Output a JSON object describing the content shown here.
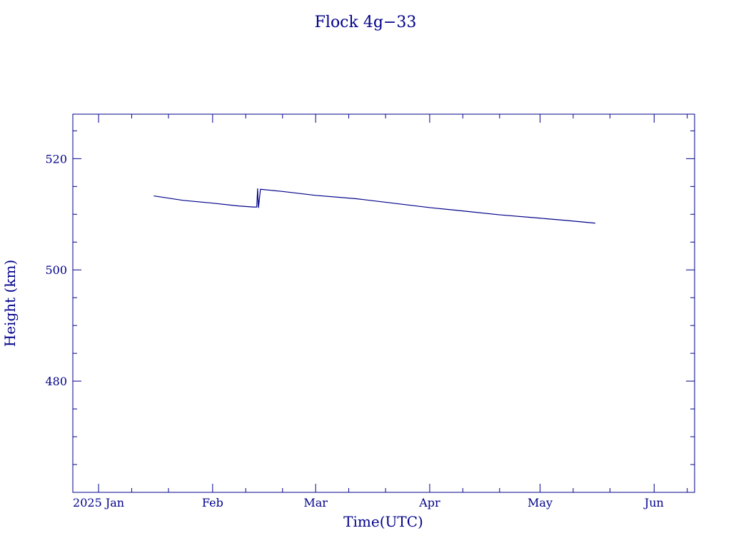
{
  "chart_data": {
    "type": "line",
    "title": "Flock 4g−33",
    "xlabel": "Time(UTC)",
    "ylabel": "Height (km)",
    "color": "#00008b",
    "grid": false,
    "legend": "none",
    "x_axis": {
      "range": [
        "2024-12-25",
        "2025-06-12"
      ],
      "ticks": [
        {
          "date": "2025-01-01",
          "label": "2025 Jan"
        },
        {
          "date": "2025-02-01",
          "label": "Feb"
        },
        {
          "date": "2025-03-01",
          "label": "Mar"
        },
        {
          "date": "2025-04-01",
          "label": "Apr"
        },
        {
          "date": "2025-05-01",
          "label": "May"
        },
        {
          "date": "2025-06-01",
          "label": "Jun"
        }
      ]
    },
    "y_axis": {
      "range": [
        460,
        528
      ],
      "ticks": [
        480,
        500,
        520
      ]
    },
    "series": [
      {
        "points": [
          {
            "x": "2025-01-16",
            "y": 513.3
          },
          {
            "x": "2025-01-24",
            "y": 512.5
          },
          {
            "x": "2025-02-01",
            "y": 512.0
          },
          {
            "x": "2025-02-08",
            "y": 511.5
          },
          {
            "x": "2025-02-12",
            "y": 511.3
          },
          {
            "x": "2025-02-13",
            "y": 511.3
          },
          {
            "x": "2025-02-13",
            "y": 514.6
          },
          {
            "x": "2025-02-13",
            "y": 511.2
          },
          {
            "x": "2025-02-14",
            "y": 514.5
          },
          {
            "x": "2025-02-20",
            "y": 514.1
          },
          {
            "x": "2025-03-01",
            "y": 513.4
          },
          {
            "x": "2025-03-12",
            "y": 512.8
          },
          {
            "x": "2025-03-22",
            "y": 512.0
          },
          {
            "x": "2025-04-01",
            "y": 511.2
          },
          {
            "x": "2025-04-10",
            "y": 510.6
          },
          {
            "x": "2025-04-20",
            "y": 509.9
          },
          {
            "x": "2025-05-01",
            "y": 509.3
          },
          {
            "x": "2025-05-08",
            "y": 508.9
          },
          {
            "x": "2025-05-16",
            "y": 508.4
          }
        ]
      }
    ]
  }
}
